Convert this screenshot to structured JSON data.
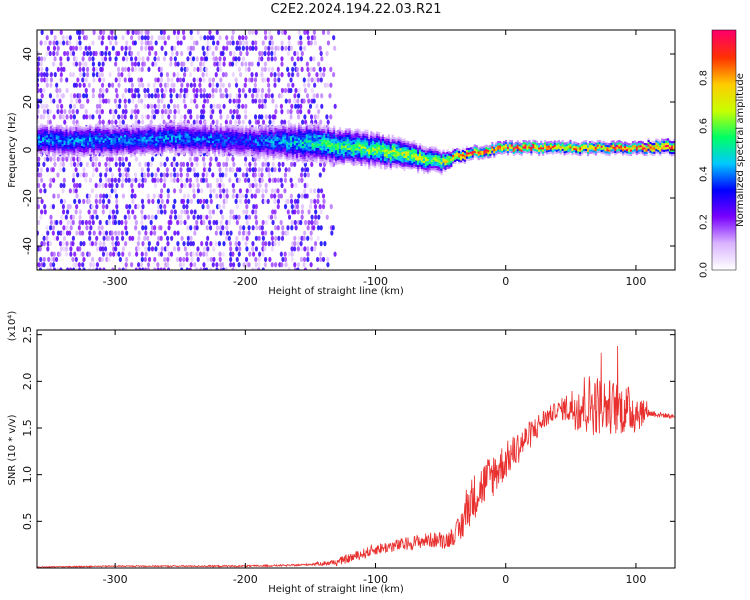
{
  "title": "C2E2.2024.194.22.03.R21",
  "chart_data": [
    {
      "type": "heatmap",
      "xlabel": "Height of straight line (km)",
      "ylabel": "Frequency (Hz)",
      "xlim": [
        -360,
        130
      ],
      "ylim": [
        -50,
        50
      ],
      "x_ticks": [
        -300,
        -200,
        -100,
        0,
        100
      ],
      "y_ticks": [
        -40,
        -20,
        0,
        20,
        40
      ],
      "colorbar": {
        "label": "Normalized spectral amplitude",
        "range": [
          0,
          1
        ],
        "ticks": [
          "0.0",
          "0.2",
          "0.4",
          "0.6",
          "0.8"
        ],
        "colors": [
          "#ffffff",
          "#d9b3ff",
          "#7a00ff",
          "#0000ff",
          "#00c8ff",
          "#00ff66",
          "#c8ff00",
          "#ffcc00",
          "#ff3300",
          "#ff0066"
        ]
      },
      "description_series": [
        {
          "name": "center",
          "x": [
            -300,
            -250,
            -200,
            -150,
            -100,
            -75,
            -50,
            -40,
            -25,
            0,
            50,
            100,
            130
          ],
          "y": [
            4,
            5,
            4,
            3,
            0,
            -2,
            -5,
            -3,
            -1,
            1,
            1,
            1,
            1.5
          ]
        },
        {
          "name": "halfwidth",
          "x": [
            -300,
            -250,
            -200,
            -150,
            -100,
            -75,
            -50,
            -40,
            -25,
            0,
            50,
            100,
            130
          ],
          "y": [
            6,
            6,
            6,
            7,
            6,
            5,
            4,
            2.5,
            2,
            2,
            2,
            2,
            2.5
          ]
        },
        {
          "name": "peak_amplitude",
          "x": [
            -300,
            -250,
            -200,
            -150,
            -100,
            -75,
            -50,
            -40,
            -25,
            0,
            50,
            100,
            130
          ],
          "y": [
            0.4,
            0.4,
            0.35,
            0.5,
            0.6,
            0.65,
            0.6,
            0.8,
            0.9,
            0.9,
            0.85,
            0.9,
            0.9
          ]
        }
      ],
      "scatter_density": {
        "noise_left_x_max": -150
      }
    },
    {
      "type": "line",
      "xlabel": "Height of straight line (km)",
      "ylabel": "SNR (10 * v/v)",
      "y_multiplier_label": "(x10⁴)",
      "xlim": [
        -360,
        130
      ],
      "ylim": [
        0,
        2.55
      ],
      "x_ticks": [
        -300,
        -200,
        -100,
        0,
        100
      ],
      "y_ticks": [
        "0.5",
        "1.0",
        "1.5",
        "2.0",
        "2.5"
      ],
      "color": "#e8302f",
      "series": [
        {
          "x": [
            -360,
            -300,
            -250,
            -200,
            -160,
            -130,
            -110,
            -100,
            -80,
            -60,
            -45,
            -35,
            -30,
            -20,
            -10,
            0,
            10,
            20,
            30,
            40,
            50,
            60,
            70,
            80,
            90,
            100,
            110,
            120,
            130
          ],
          "y": [
            0.01,
            0.02,
            0.02,
            0.02,
            0.03,
            0.06,
            0.15,
            0.2,
            0.25,
            0.3,
            0.3,
            0.4,
            0.65,
            0.85,
            1.0,
            1.15,
            1.3,
            1.45,
            1.6,
            1.7,
            1.72,
            1.75,
            1.75,
            1.73,
            1.7,
            1.68,
            1.66,
            1.64,
            1.62
          ]
        }
      ],
      "noise": {
        "amplitude_x": [
          -360,
          -150,
          -120,
          -60,
          -40,
          -30,
          -10,
          0,
          20,
          40,
          50,
          60,
          80,
          100,
          110,
          130
        ],
        "amplitude_y": [
          0.005,
          0.01,
          0.05,
          0.08,
          0.1,
          0.25,
          0.25,
          0.2,
          0.15,
          0.08,
          0.2,
          0.35,
          0.3,
          0.25,
          0.04,
          0.02
        ]
      }
    }
  ]
}
